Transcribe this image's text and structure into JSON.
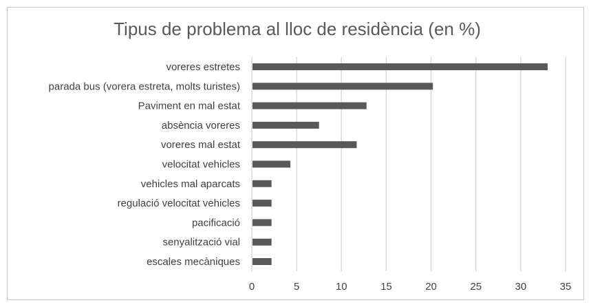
{
  "chart_data": {
    "type": "bar",
    "orientation": "horizontal",
    "title": "Tipus de problema al lloc de residència (en %)",
    "xlabel": "",
    "ylabel": "",
    "categories": [
      "voreres estretes",
      "parada bus (vorera estreta, molts turistes)",
      "Paviment en mal estat",
      "absència voreres",
      "voreres mal estat",
      "velocitat vehicles",
      "vehicles mal aparcats",
      "regulació velocitat vehicles",
      "pacificació",
      "senyalització vial",
      "escales mecàniques"
    ],
    "values": [
      33,
      20.2,
      12.8,
      7.5,
      11.7,
      4.3,
      2.2,
      2.2,
      2.2,
      2.2,
      2.2
    ],
    "xlim": [
      0,
      35
    ],
    "xticks": [
      "0",
      "5",
      "10",
      "15",
      "20",
      "25",
      "30",
      "35"
    ],
    "grid": true,
    "legend": "none",
    "bar_color": "#595959"
  }
}
